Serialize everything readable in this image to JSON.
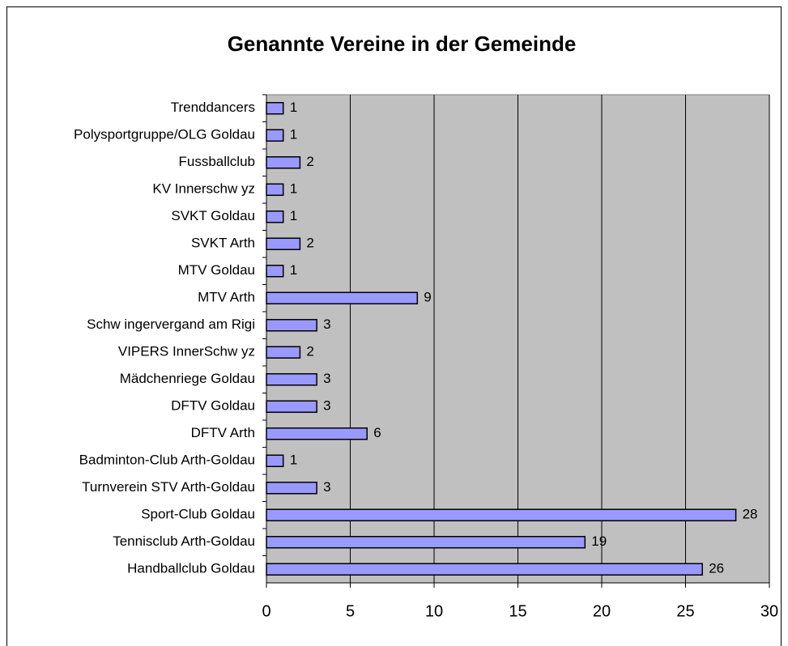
{
  "chart_data": {
    "type": "bar",
    "orientation": "horizontal",
    "title": "Genannte Vereine in der Gemeinde",
    "categories": [
      "Trenddancers",
      "Polysportgruppe/OLG Goldau",
      "Fussballclub",
      "KV Innerschw yz",
      "SVKT Goldau",
      "SVKT Arth",
      "MTV Goldau",
      "MTV Arth",
      "Schw ingervergand am Rigi",
      "VIPERS InnerSchw yz",
      "Mädchenriege Goldau",
      "DFTV Goldau",
      "DFTV Arth",
      "Badminton-Club Arth-Goldau",
      "Turnverein STV Arth-Goldau",
      "Sport-Club Goldau",
      "Tennisclub Arth-Goldau",
      "Handballclub Goldau"
    ],
    "values": [
      1,
      1,
      2,
      1,
      1,
      2,
      1,
      9,
      3,
      2,
      3,
      3,
      6,
      1,
      3,
      28,
      19,
      26
    ],
    "color": "#9999ff",
    "plot_background": "#c0c0c0",
    "xlim": [
      0,
      30
    ],
    "xticks": [
      0,
      5,
      10,
      15,
      20,
      25,
      30
    ],
    "grid": true
  }
}
